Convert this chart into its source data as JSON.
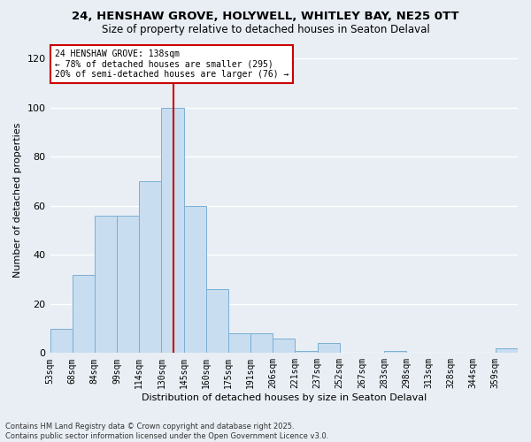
{
  "title_line1": "24, HENSHAW GROVE, HOLYWELL, WHITLEY BAY, NE25 0TT",
  "title_line2": "Size of property relative to detached houses in Seaton Delaval",
  "xlabel": "Distribution of detached houses by size in Seaton Delaval",
  "ylabel": "Number of detached properties",
  "bin_labels": [
    "53sqm",
    "68sqm",
    "84sqm",
    "99sqm",
    "114sqm",
    "130sqm",
    "145sqm",
    "160sqm",
    "175sqm",
    "191sqm",
    "206sqm",
    "221sqm",
    "237sqm",
    "252sqm",
    "267sqm",
    "283sqm",
    "298sqm",
    "313sqm",
    "328sqm",
    "344sqm",
    "359sqm"
  ],
  "bar_heights": [
    10,
    32,
    56,
    56,
    70,
    100,
    60,
    26,
    8,
    8,
    6,
    1,
    4,
    0,
    0,
    1,
    0,
    0,
    0,
    0,
    2
  ],
  "bar_color": "#c8ddf0",
  "bar_edge_color": "#7aafd4",
  "property_line_x": 138,
  "bin_starts": [
    53,
    68,
    84,
    99,
    114,
    130,
    145,
    160,
    175,
    191,
    206,
    221,
    237,
    252,
    267,
    283,
    298,
    313,
    328,
    344,
    359
  ],
  "annotation_text": "24 HENSHAW GROVE: 138sqm\n← 78% of detached houses are smaller (295)\n20% of semi-detached houses are larger (76) →",
  "annotation_box_color": "#ffffff",
  "annotation_box_edge": "#cc0000",
  "red_line_color": "#cc0000",
  "ylim": [
    0,
    125
  ],
  "yticks": [
    0,
    20,
    40,
    60,
    80,
    100,
    120
  ],
  "footer_text": "Contains HM Land Registry data © Crown copyright and database right 2025.\nContains public sector information licensed under the Open Government Licence v3.0.",
  "background_color": "#e8eef4",
  "plot_background_color": "#e8eef4",
  "grid_color": "#ffffff"
}
